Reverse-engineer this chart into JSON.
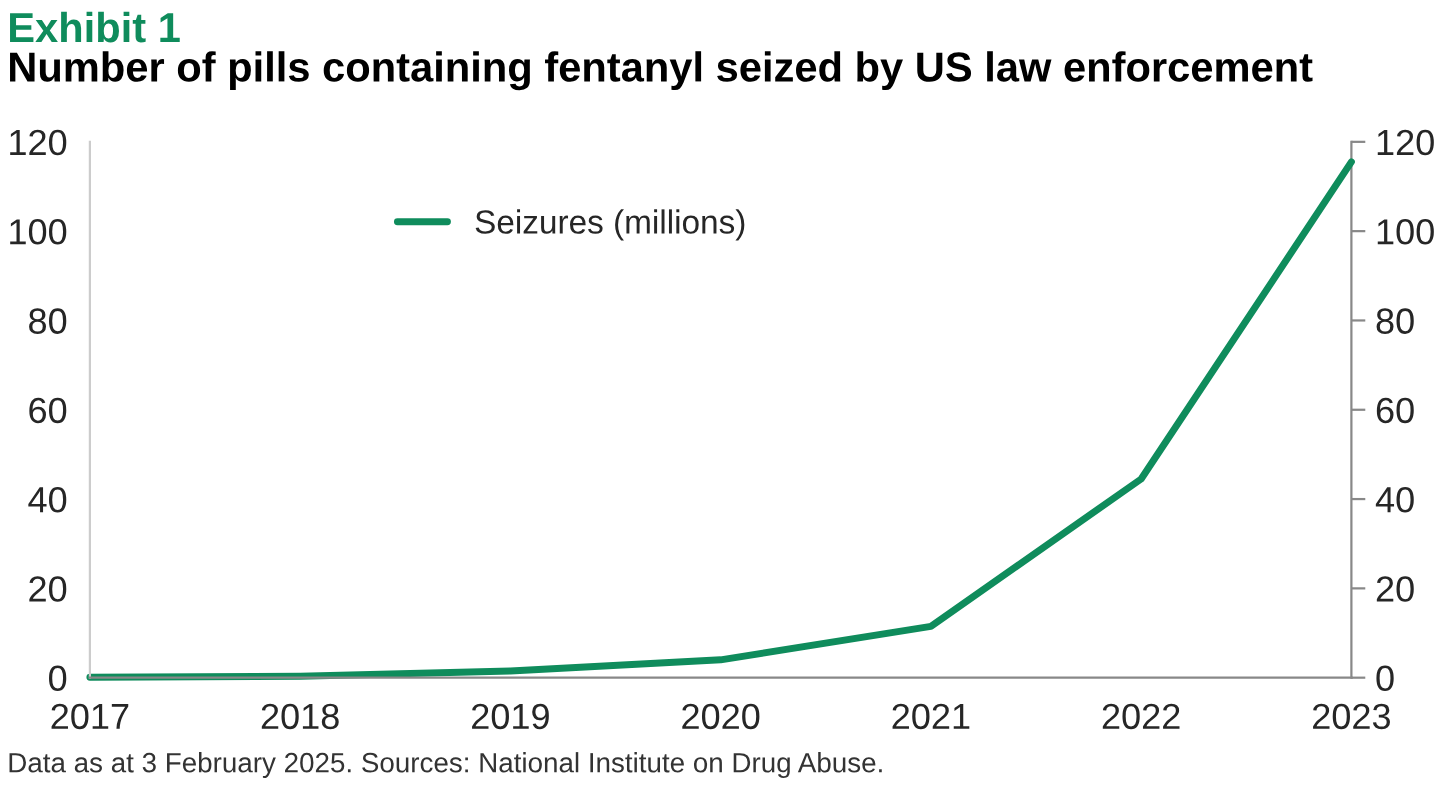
{
  "chart_data": {
    "type": "line",
    "title": "Exhibit 1",
    "subtitle": "Number of pills containing fentanyl seized by US law enforcement",
    "categories": [
      "2017",
      "2018",
      "2019",
      "2020",
      "2021",
      "2022",
      "2023"
    ],
    "series": [
      {
        "name": "Seizures (millions)",
        "color": "#0f8c5c",
        "values": [
          0.1,
          0.3,
          1.5,
          4,
          11.5,
          44.5,
          115.5
        ]
      }
    ],
    "ylim": [
      0,
      120
    ],
    "yticks": [
      0,
      20,
      40,
      60,
      80,
      100,
      120
    ],
    "y2lim": [
      0,
      120
    ],
    "y2ticks": [
      0,
      20,
      40,
      60,
      80,
      100,
      120
    ],
    "legend": "top left",
    "grid": false,
    "marker": "none",
    "line_style": "solid",
    "annotations": [
      "Data as at 3 February 2025. Sources: National Institute on Drug Abuse."
    ]
  }
}
